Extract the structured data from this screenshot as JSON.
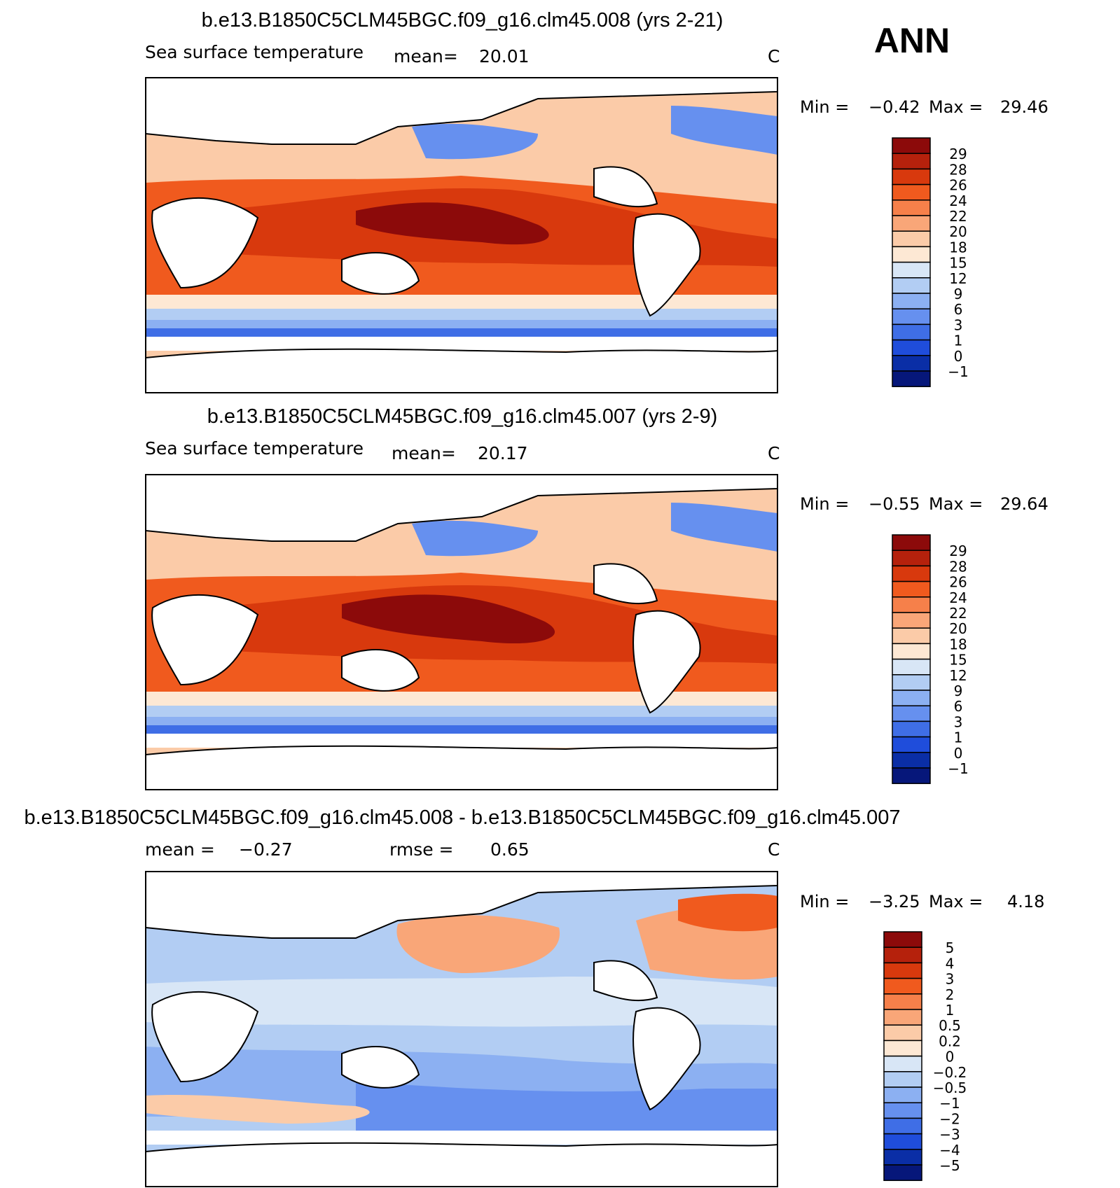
{
  "season_label": "ANN",
  "colors": {
    "ocean_default": "#f2f6fc",
    "land": "#ffffff",
    "coast": "#000000",
    "frame": "#000000"
  },
  "chart_data": [
    {
      "type": "heatmap",
      "title": "b.e13.B1850C5CLM45BGC.f09_g16.clm45.008 (yrs 2-21)",
      "variable_label": "Sea surface temperature",
      "stat_label": "mean=",
      "stat_value": "20.01",
      "units": "C",
      "min_label": "Min =",
      "min_value": "−0.42",
      "max_label": "Max =",
      "max_value": "29.46",
      "lon_range": [
        20,
        380
      ],
      "lat_range": [
        -90,
        90
      ],
      "colorbar": {
        "labels": [
          "29",
          "28",
          "26",
          "24",
          "22",
          "20",
          "18",
          "15",
          "12",
          "9",
          "6",
          "3",
          "1",
          "0",
          "−1"
        ],
        "colors": [
          "#8c0a0a",
          "#b5210c",
          "#d8390d",
          "#f05a1e",
          "#f6804a",
          "#f9a678",
          "#fbcba8",
          "#fde8d4",
          "#d8e6f6",
          "#b2cdf3",
          "#8cb0f2",
          "#6690ef",
          "#3f6ee6",
          "#1f4ddb",
          "#0a2ea6",
          "#06177a"
        ]
      }
    },
    {
      "type": "heatmap",
      "title": "b.e13.B1850C5CLM45BGC.f09_g16.clm45.007 (yrs 2-9)",
      "variable_label": "Sea surface temperature",
      "stat_label": "mean=",
      "stat_value": "20.17",
      "units": "C",
      "min_label": "Min =",
      "min_value": "−0.55",
      "max_label": "Max =",
      "max_value": "29.64",
      "lon_range": [
        20,
        380
      ],
      "lat_range": [
        -90,
        90
      ],
      "colorbar": {
        "labels": [
          "29",
          "28",
          "26",
          "24",
          "22",
          "20",
          "18",
          "15",
          "12",
          "9",
          "6",
          "3",
          "1",
          "0",
          "−1"
        ],
        "colors": [
          "#8c0a0a",
          "#b5210c",
          "#d8390d",
          "#f05a1e",
          "#f6804a",
          "#f9a678",
          "#fbcba8",
          "#fde8d4",
          "#d8e6f6",
          "#b2cdf3",
          "#8cb0f2",
          "#6690ef",
          "#3f6ee6",
          "#1f4ddb",
          "#0a2ea6",
          "#06177a"
        ]
      }
    },
    {
      "type": "heatmap",
      "title": "b.e13.B1850C5CLM45BGC.f09_g16.clm45.008 - b.e13.B1850C5CLM45BGC.f09_g16.clm45.007",
      "stat_label": "mean =",
      "stat_value": "−0.27",
      "rmse_label": "rmse =",
      "rmse_value": "0.65",
      "units": "C",
      "min_label": "Min =",
      "min_value": "−3.25",
      "max_label": "Max =",
      "max_value": "4.18",
      "lon_range": [
        20,
        380
      ],
      "lat_range": [
        -90,
        90
      ],
      "colorbar": {
        "labels": [
          "5",
          "4",
          "3",
          "2",
          "1",
          "0.5",
          "0.2",
          "0",
          "−0.2",
          "−0.5",
          "−1",
          "−2",
          "−3",
          "−4",
          "−5"
        ],
        "colors": [
          "#8c0a0a",
          "#b5210c",
          "#d8390d",
          "#f05a1e",
          "#f6804a",
          "#f9a678",
          "#fbcba8",
          "#fde8d4",
          "#d8e6f6",
          "#b2cdf3",
          "#8cb0f2",
          "#6690ef",
          "#3f6ee6",
          "#1f4ddb",
          "#0a2ea6",
          "#06177a"
        ]
      }
    }
  ]
}
